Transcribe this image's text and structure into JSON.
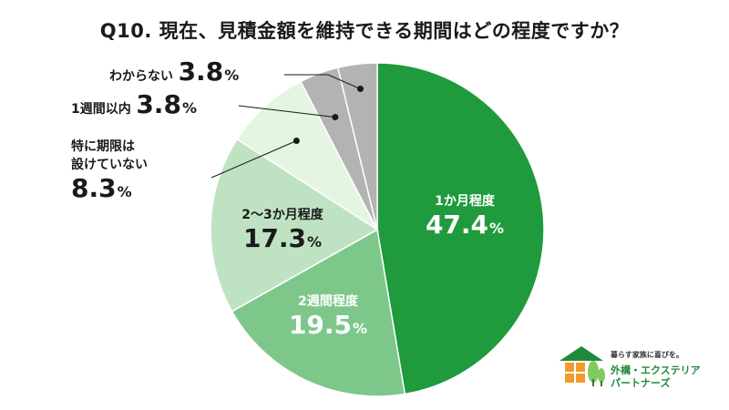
{
  "title": "Q10. 現在、見積金額を維持できる期間はどの程度ですか？",
  "chart_data": {
    "type": "pie",
    "categories": [
      "1か月程度",
      "2週間程度",
      "2〜3か月程度",
      "特に期限は設けていない",
      "1週間以内",
      "わからない"
    ],
    "values": [
      47.4,
      19.5,
      17.3,
      8.3,
      3.8,
      3.8
    ],
    "colors": [
      "#1f9a3c",
      "#7dc78a",
      "#bfe3c2",
      "#e4f5e2",
      "#b3b3b3",
      "#b3b3b3"
    ],
    "labels": [
      {
        "name": "1か月程度",
        "num": "47.4",
        "pct": "%"
      },
      {
        "name": "2週間程度",
        "num": "19.5",
        "pct": "%"
      },
      {
        "name": "2〜3か月程度",
        "num": "17.3",
        "pct": "%"
      },
      {
        "name_line1": "特に期限は",
        "name_line2": "設けていない",
        "num": "8.3",
        "pct": "%"
      },
      {
        "name": "1週間以内",
        "num": "3.8",
        "pct": "%"
      },
      {
        "name": "わからない",
        "num": "3.8",
        "pct": "%"
      }
    ]
  },
  "logo": {
    "tagline": "暮らす家族に喜びを。",
    "brand_line1": "外構・エクステリア",
    "brand_line2": "パートナーズ"
  }
}
